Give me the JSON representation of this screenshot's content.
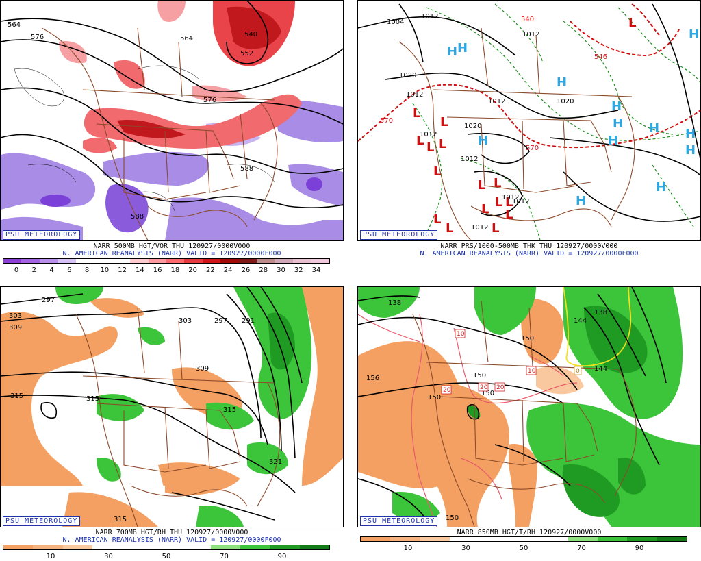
{
  "badge": "PSU METEOROLOGY",
  "panels": [
    {
      "caption1": "NARR 500MB HGT/VOR THU 120927/0000V000",
      "caption2": "N. AMERICAN REANALYSIS (NARR) VALID = 120927/0000F000",
      "colorbar": [
        "#8a3fd6",
        "#a262e4",
        "#b890ec",
        "#d6c2f4",
        "#ffffff",
        "#ffffff",
        "#ffffff",
        "#ffcdd0",
        "#ff9aa0",
        "#f86a70",
        "#e83a3e",
        "#d01418",
        "#a00a0a",
        "#801818",
        "#b88a8a",
        "#d0a8b8",
        "#e8c0d0",
        "#f0c8dc"
      ],
      "ticks": [
        "0",
        "2",
        "4",
        "6",
        "8",
        "10",
        "12",
        "14",
        "16",
        "18",
        "20",
        "22",
        "24",
        "26",
        "28",
        "30",
        "32",
        "34"
      ],
      "labels": [
        "564",
        "576",
        "564",
        "576",
        "588",
        "588",
        "552",
        "540"
      ]
    },
    {
      "caption1": "NARR PRS/1000-500MB THK THU 120927/0000V000",
      "caption2": "N. AMERICAN REANALYSIS (NARR) VALID = 120927/0000F000",
      "labels": [
        "1004",
        "1012",
        "1012",
        "1020",
        "1020",
        "1012",
        "1012",
        "1020",
        "1012",
        "1012",
        "1012",
        "1012",
        "1012",
        "570",
        "570",
        "540",
        "546"
      ]
    },
    {
      "caption1": "NARR 700MB HGT/RH THU 120927/0000V000",
      "caption2": "N. AMERICAN REANALYSIS (NARR) VALID = 120927/0000F000",
      "colorbar": [
        "#f3a062",
        "#f6b27e",
        "#f9c89e",
        "#ffffff",
        "#ffffff",
        "#ffffff",
        "#ffffff",
        "#8ee07e",
        "#3cc43a",
        "#1f9b24",
        "#127a16"
      ],
      "ticks": [
        "10",
        "30",
        "50",
        "70",
        "90"
      ],
      "labels": [
        "297",
        "303",
        "309",
        "303",
        "297",
        "291",
        "309",
        "315",
        "315",
        "315",
        "321",
        "315"
      ]
    },
    {
      "caption1": "NARR 850MB HGT/T/RH 120927/0000V000",
      "caption2": "",
      "colorbar": [
        "#f3a062",
        "#f6b27e",
        "#f9c89e",
        "#ffffff",
        "#ffffff",
        "#ffffff",
        "#ffffff",
        "#8ee07e",
        "#3cc43a",
        "#1f9b24",
        "#127a16"
      ],
      "ticks": [
        "10",
        "30",
        "50",
        "70",
        "90"
      ],
      "labels": [
        "138",
        "144",
        "138",
        "150",
        "144",
        "150",
        "156",
        "150",
        "150",
        "150",
        "10",
        "10",
        "20",
        "20",
        "20",
        "0"
      ]
    }
  ]
}
